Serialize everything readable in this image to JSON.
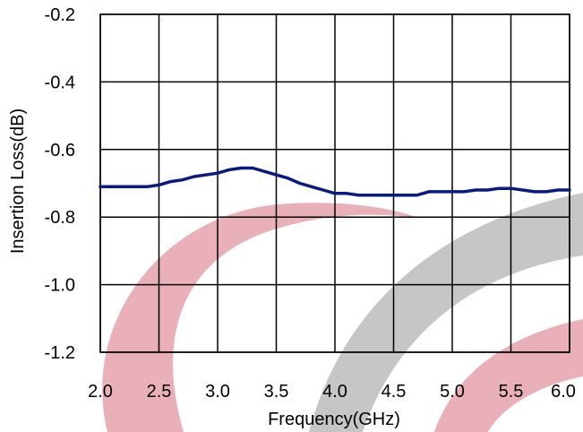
{
  "chart_data": {
    "type": "line",
    "title": "",
    "xlabel": "Frequency(GHz)",
    "ylabel": "Insertion Loss(dB)",
    "xlim": [
      2.0,
      6.0
    ],
    "ylim": [
      -1.2,
      -0.2
    ],
    "xticks": [
      "2.0",
      "2.5",
      "3.0",
      "3.5",
      "4.0",
      "4.5",
      "5.0",
      "5.5",
      "6.0"
    ],
    "yticks": [
      "-0.2",
      "-0.4",
      "-0.6",
      "-0.8",
      "-1.0",
      "-1.2"
    ],
    "grid": true,
    "legend": "none",
    "colors": {
      "series": "#0a1a80",
      "grid": "#000000",
      "watermark_red": "#e7a7b2",
      "watermark_gray": "#c3c3c3"
    },
    "series": [
      {
        "x": [
          2.0,
          2.2,
          2.4,
          2.5,
          2.6,
          2.7,
          2.8,
          3.0,
          3.1,
          3.2,
          3.3,
          3.4,
          3.5,
          3.6,
          3.7,
          3.8,
          3.9,
          4.0,
          4.1,
          4.2,
          4.4,
          4.6,
          4.7,
          4.8,
          5.0,
          5.1,
          5.2,
          5.3,
          5.4,
          5.5,
          5.6,
          5.7,
          5.8,
          5.9,
          6.0
        ],
        "values": [
          -0.71,
          -0.71,
          -0.71,
          -0.705,
          -0.695,
          -0.69,
          -0.68,
          -0.67,
          -0.66,
          -0.655,
          -0.655,
          -0.665,
          -0.675,
          -0.685,
          -0.7,
          -0.71,
          -0.72,
          -0.73,
          -0.73,
          -0.735,
          -0.735,
          -0.735,
          -0.735,
          -0.725,
          -0.725,
          -0.725,
          -0.72,
          -0.72,
          -0.715,
          -0.715,
          -0.72,
          -0.725,
          -0.725,
          -0.72,
          -0.72
        ]
      }
    ]
  }
}
